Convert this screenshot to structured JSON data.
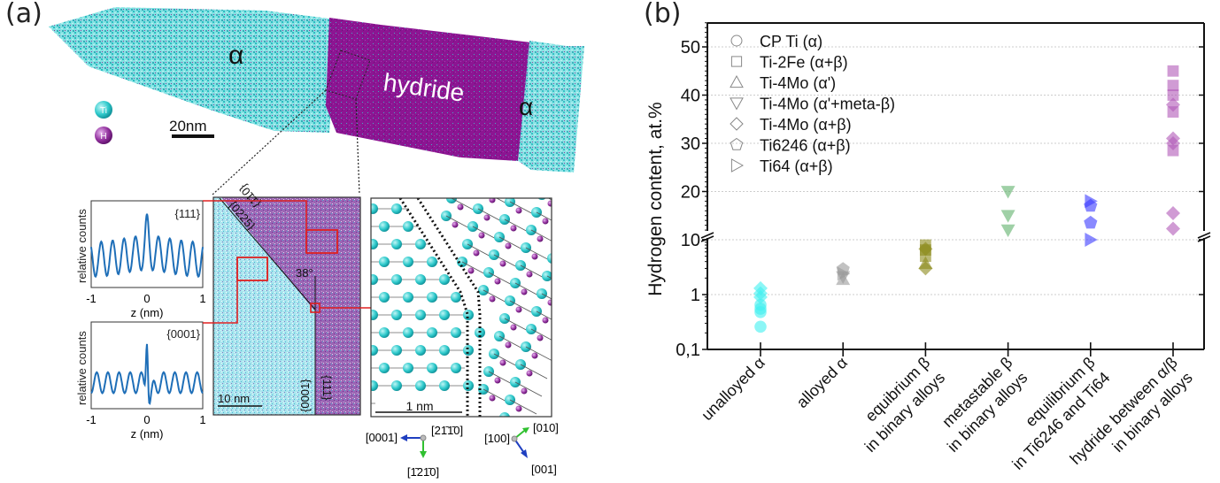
{
  "panel_a": {
    "label": "(a)",
    "apt_map": {
      "alpha_left": "α",
      "hydride": "hydride",
      "alpha_right": "α",
      "legend": [
        {
          "symbol": "Ti",
          "color": "#3fd0d4"
        },
        {
          "symbol": "H",
          "color": "#9b3aa8"
        }
      ],
      "scale_bar": "20nm",
      "colors": {
        "ti": "#28c8cc",
        "h": "#8e1a94"
      }
    },
    "profile_top": {
      "title": "{111}",
      "ylabel": "relative counts",
      "xlabel": "z (nm)",
      "xticks": [
        "-1",
        "0",
        "1"
      ]
    },
    "profile_bottom": {
      "title": "{0001}",
      "ylabel": "relative counts",
      "xlabel": "z (nm)",
      "xticks": [
        "-1",
        "0",
        "1"
      ]
    },
    "slice_map": {
      "planes": [
        "{0225}",
        "{110}",
        "{0001}",
        "{111}"
      ],
      "angle": "38°",
      "scale_bar": "10 nm"
    },
    "atomic_model": {
      "scale_bar": "1 nm"
    },
    "axes_left": {
      "center": "[2-1-10]",
      "left": "[0001]",
      "down": "[-12-10]"
    },
    "axes_right": {
      "center": "[100]",
      "up": "[010]",
      "down": "[001]"
    },
    "axes_left_display": {
      "center": "[21̄1̄0]",
      "left": "[0001]",
      "down": "[1̄21̄0]"
    }
  },
  "panel_b": {
    "label": "(b)"
  },
  "chart_data": {
    "type": "scatter",
    "title": "",
    "xlabel": "",
    "ylabel": "Hydrogen content, at.%",
    "y_scale": "broken: log 0.1–10 (lower), linear 10–55 (upper)",
    "ylim_lower": [
      0.1,
      10
    ],
    "ylim_upper": [
      10,
      55
    ],
    "yticks_lower": [
      "0,1",
      "1",
      "10"
    ],
    "yticks_upper": [
      "10",
      "20",
      "30",
      "40",
      "50"
    ],
    "grid": true,
    "legend_position": "top-left",
    "categories": [
      "unalloyed α",
      "alloyed α",
      "equibrium β\nin binary alloys",
      "metastable β\nin binary alloys",
      "equilibrium β\nin Ti6246 and Ti64",
      "hydride between α/β\nin binary alloys"
    ],
    "category_lines": [
      [
        "unalloyed α"
      ],
      [
        "alloyed α"
      ],
      [
        "equibrium β",
        "in binary alloys"
      ],
      [
        "metastable β",
        "in binary alloys"
      ],
      [
        "equilibrium β",
        "in Ti6246 and Ti64"
      ],
      [
        "hydride between α/β",
        "in binary alloys"
      ]
    ],
    "category_colors": [
      "#3ff0f0",
      "#9a9a9a",
      "#8c8a1a",
      "#5fb06a",
      "#3a3aff",
      "#b058b8"
    ],
    "legend": [
      {
        "label": "CP Ti (α)",
        "marker": "circle"
      },
      {
        "label": "Ti-2Fe (α+β)",
        "marker": "square"
      },
      {
        "label": "Ti-4Mo (α')",
        "marker": "triangle-up"
      },
      {
        "label": "Ti-4Mo (α'+meta-β)",
        "marker": "triangle-down"
      },
      {
        "label": "Ti-4Mo (α+β)",
        "marker": "diamond"
      },
      {
        "label": "Ti6246 (α+β)",
        "marker": "pentagon"
      },
      {
        "label": "Ti64 (α+β)",
        "marker": "triangle-right"
      }
    ],
    "points": [
      {
        "category": 0,
        "marker": "circle",
        "y": 0.26
      },
      {
        "category": 0,
        "marker": "circle",
        "y": 0.48
      },
      {
        "category": 0,
        "marker": "circle",
        "y": 0.55
      },
      {
        "category": 0,
        "marker": "circle",
        "y": 0.65
      },
      {
        "category": 0,
        "marker": "diamond",
        "y": 0.9
      },
      {
        "category": 0,
        "marker": "diamond",
        "y": 1.05
      },
      {
        "category": 0,
        "marker": "diamond",
        "y": 1.3
      },
      {
        "category": 1,
        "marker": "pentagon",
        "y": 2.9
      },
      {
        "category": 1,
        "marker": "triangle-right",
        "y": 2.4
      },
      {
        "category": 1,
        "marker": "triangle-up",
        "y": 1.9
      },
      {
        "category": 1,
        "marker": "triangle-down",
        "y": 2.1
      },
      {
        "category": 2,
        "marker": "square",
        "y": 8.0
      },
      {
        "category": 2,
        "marker": "square",
        "y": 6.5
      },
      {
        "category": 2,
        "marker": "diamond",
        "y": 6.8
      },
      {
        "category": 2,
        "marker": "square",
        "y": 5.0
      },
      {
        "category": 2,
        "marker": "triangle-up",
        "y": 3.7
      },
      {
        "category": 2,
        "marker": "diamond",
        "y": 3.0
      },
      {
        "category": 3,
        "marker": "triangle-down",
        "y": 20
      },
      {
        "category": 3,
        "marker": "triangle-down",
        "y": 15
      },
      {
        "category": 3,
        "marker": "triangle-down",
        "y": 12
      },
      {
        "category": 4,
        "marker": "triangle-right",
        "y": 18
      },
      {
        "category": 4,
        "marker": "pentagon",
        "y": 17
      },
      {
        "category": 4,
        "marker": "pentagon",
        "y": 13.5
      },
      {
        "category": 4,
        "marker": "triangle-right",
        "y": 10
      },
      {
        "category": 5,
        "marker": "square",
        "y": 45
      },
      {
        "category": 5,
        "marker": "square",
        "y": 42
      },
      {
        "category": 5,
        "marker": "square",
        "y": 40
      },
      {
        "category": 5,
        "marker": "diamond",
        "y": 38
      },
      {
        "category": 5,
        "marker": "square",
        "y": 36.5
      },
      {
        "category": 5,
        "marker": "diamond",
        "y": 31
      },
      {
        "category": 5,
        "marker": "diamond",
        "y": 30
      },
      {
        "category": 5,
        "marker": "square",
        "y": 28.5
      },
      {
        "category": 5,
        "marker": "diamond",
        "y": 15.5
      },
      {
        "category": 5,
        "marker": "diamond",
        "y": 12.3
      }
    ]
  }
}
